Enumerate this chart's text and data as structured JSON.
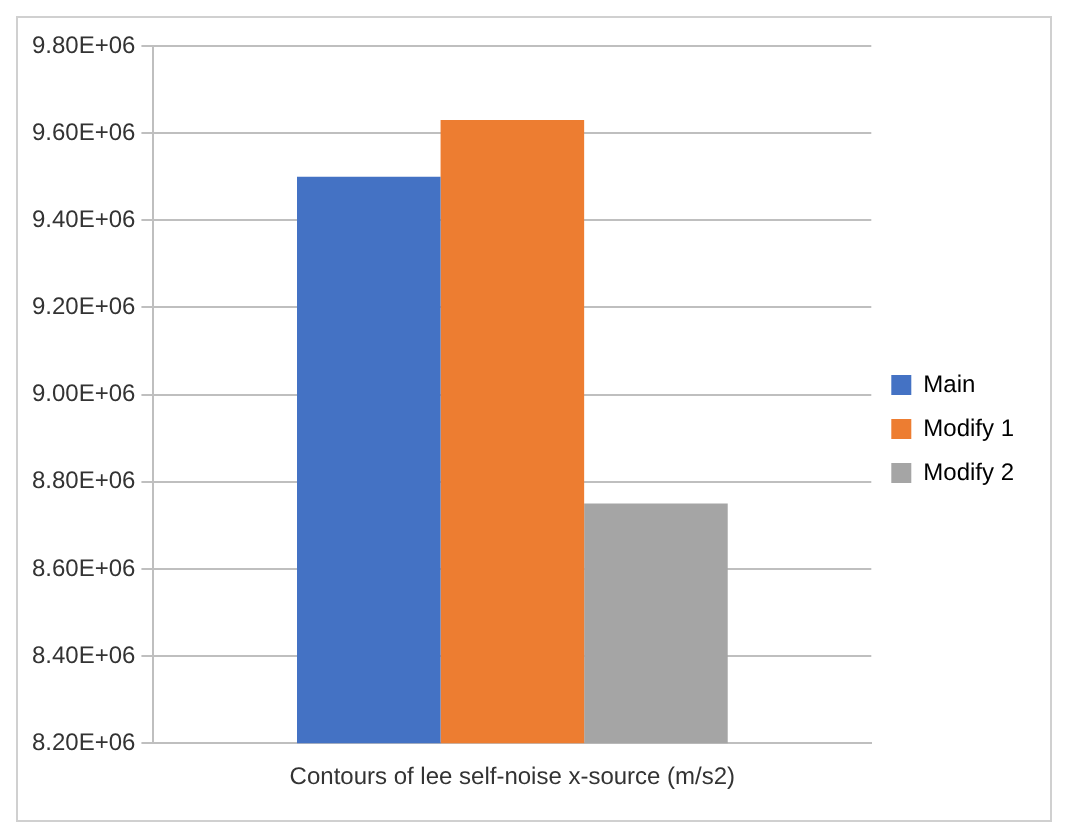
{
  "chart_data": {
    "type": "bar",
    "categories": [
      "Contours of lee self-noise x-source (m/s2)"
    ],
    "series": [
      {
        "name": "Main",
        "color": "#4472c4",
        "values": [
          9500000
        ]
      },
      {
        "name": "Modify 1",
        "color": "#ed7d31",
        "values": [
          9630000
        ]
      },
      {
        "name": "Modify 2",
        "color": "#a5a5a5",
        "values": [
          8750000
        ]
      }
    ],
    "ylim": [
      8200000,
      9800000
    ],
    "yticks": [
      {
        "value": 8200000,
        "label": "8.20E+06"
      },
      {
        "value": 8400000,
        "label": "8.40E+06"
      },
      {
        "value": 8600000,
        "label": "8.60E+06"
      },
      {
        "value": 8800000,
        "label": "8.80E+06"
      },
      {
        "value": 9000000,
        "label": "9.00E+06"
      },
      {
        "value": 9200000,
        "label": "9.20E+06"
      },
      {
        "value": 9400000,
        "label": "9.40E+06"
      },
      {
        "value": 9600000,
        "label": "9.60E+06"
      },
      {
        "value": 9800000,
        "label": "9.80E+06"
      }
    ],
    "grid": "y",
    "legend": "right"
  }
}
